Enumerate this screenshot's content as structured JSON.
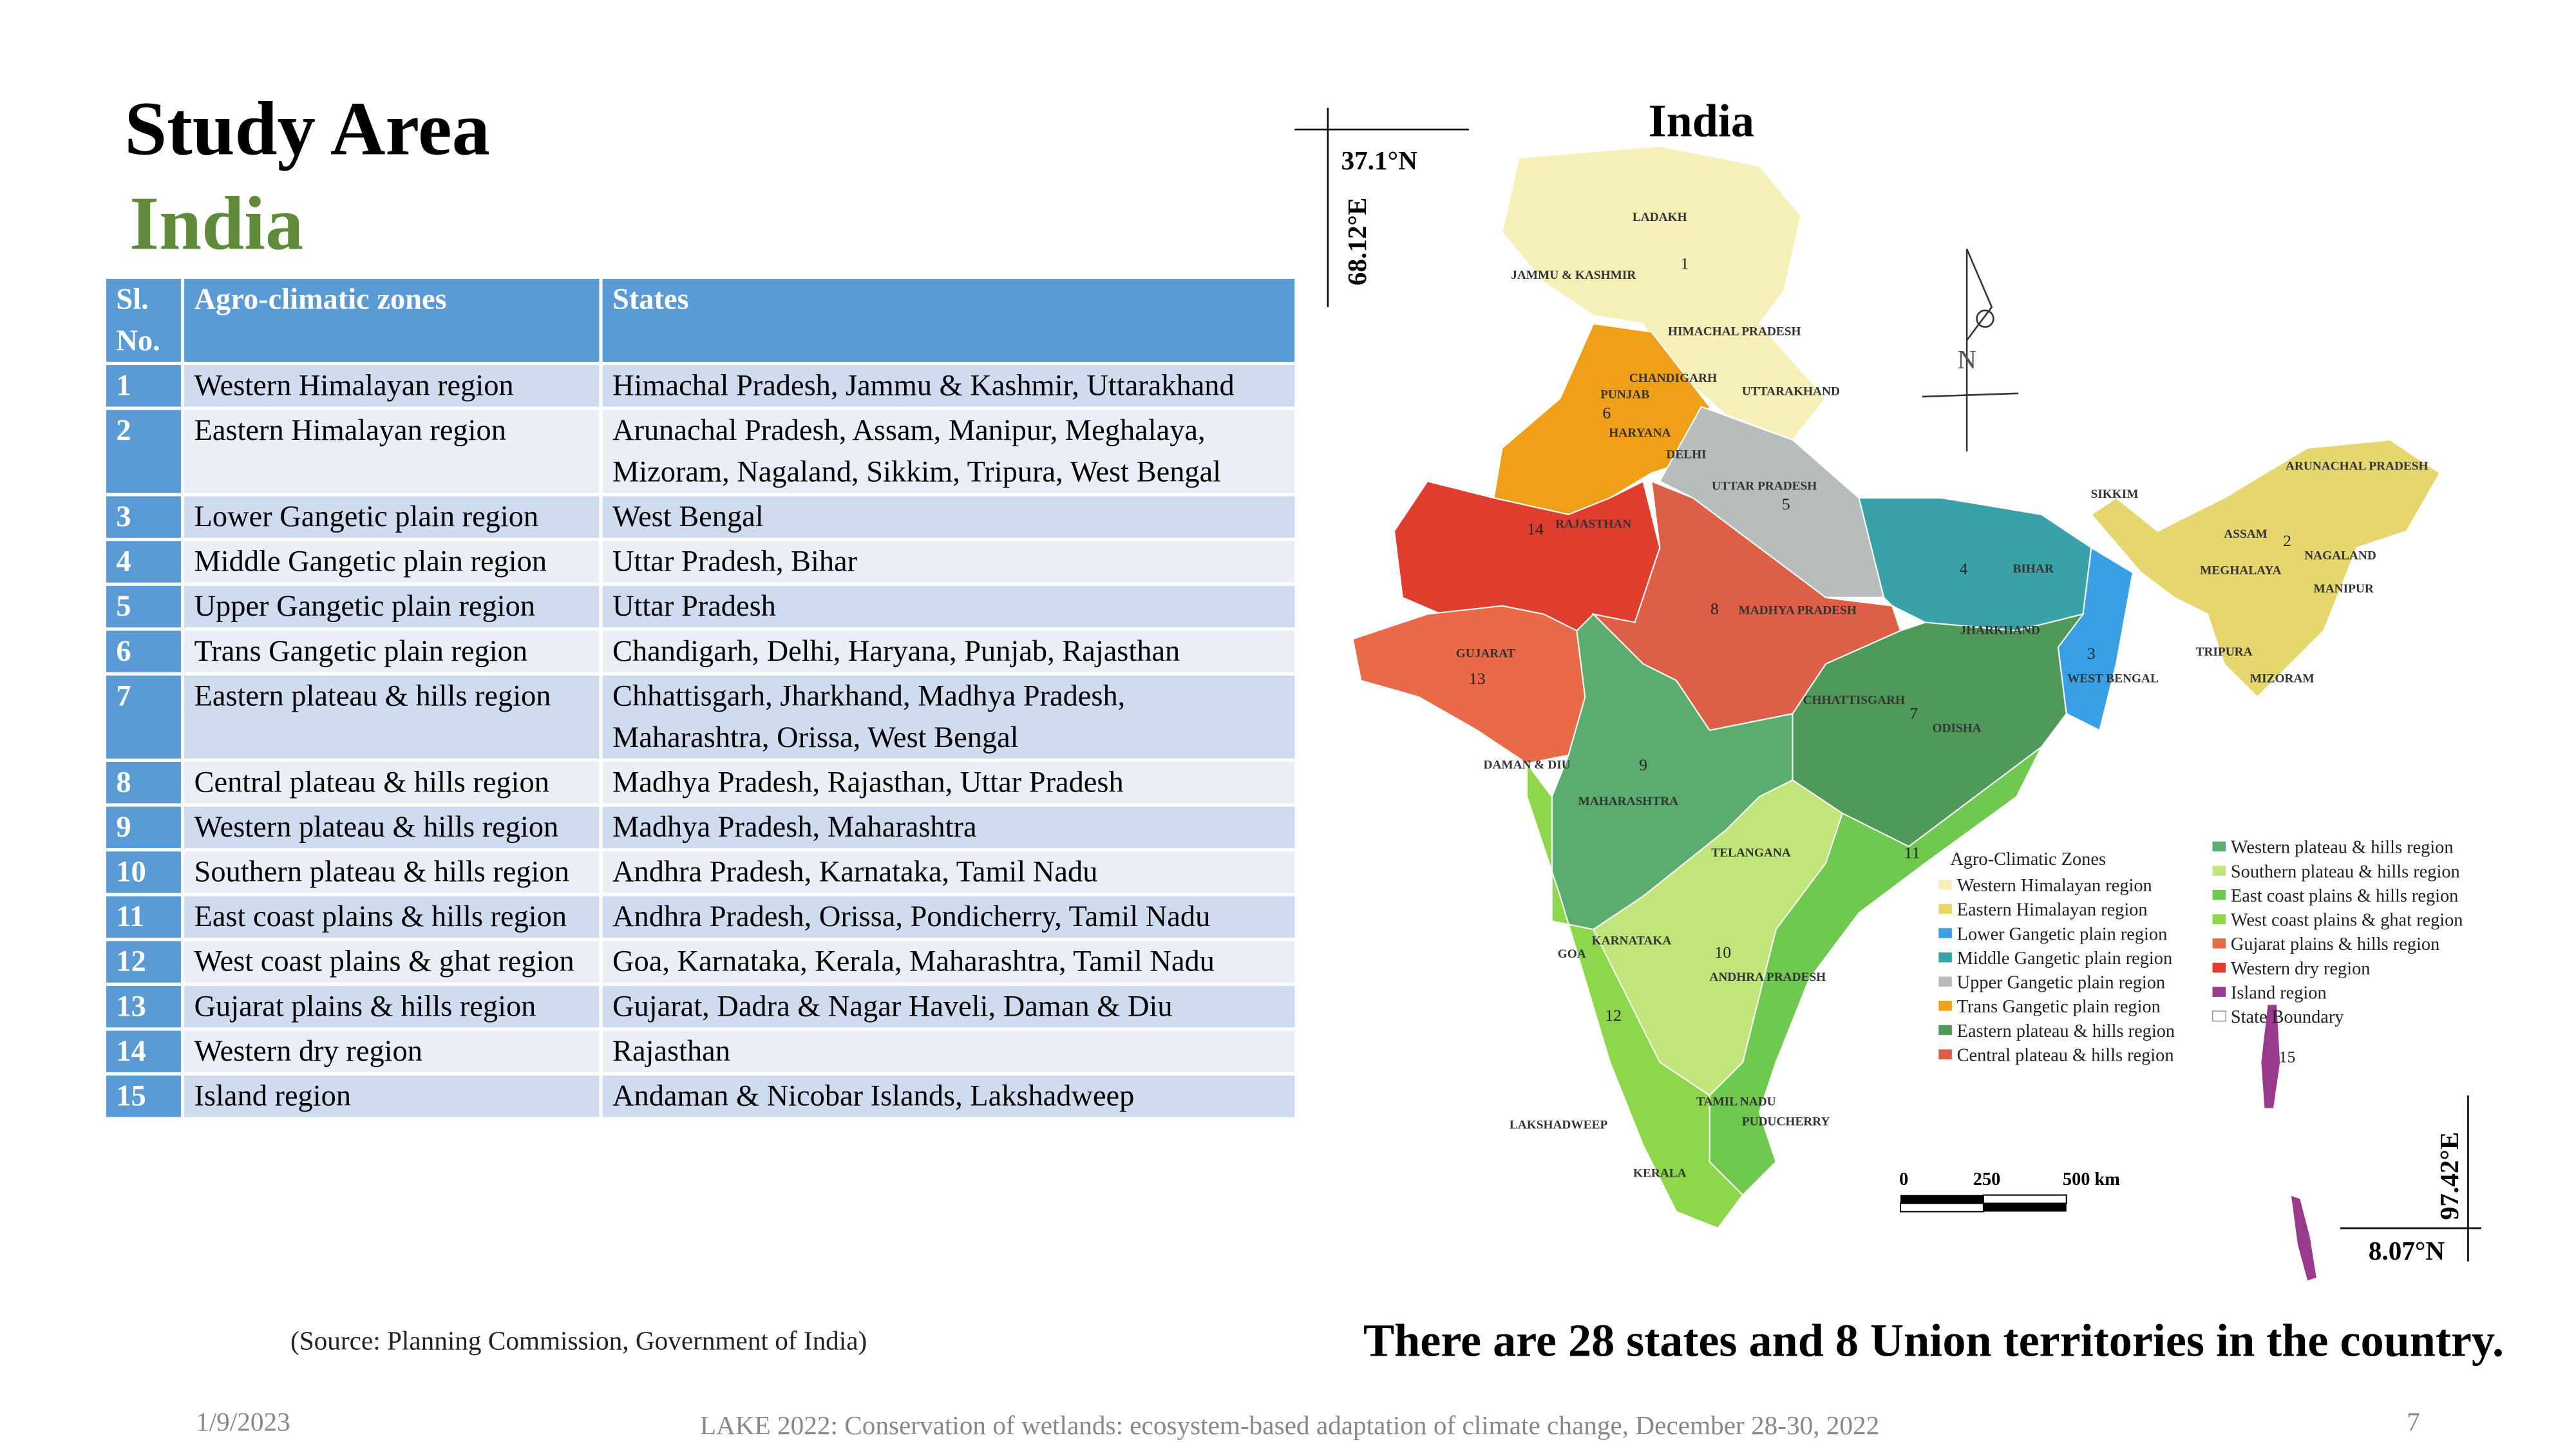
{
  "header": {
    "title": "Study Area",
    "subtitle": "India"
  },
  "table": {
    "header": [
      "Sl. No.",
      "Agro-climatic zones",
      "States"
    ],
    "rows": [
      [
        "1",
        "Western Himalayan region",
        "Himachal Pradesh, Jammu & Kashmir, Uttarakhand"
      ],
      [
        "2",
        "Eastern Himalayan region",
        "Arunachal Pradesh, Assam, Manipur, Meghalaya, Mizoram, Nagaland, Sikkim, Tripura, West Bengal"
      ],
      [
        "3",
        "Lower Gangetic plain region",
        "West Bengal"
      ],
      [
        "4",
        "Middle Gangetic plain region",
        "Uttar Pradesh, Bihar"
      ],
      [
        "5",
        "Upper Gangetic plain region",
        "Uttar Pradesh"
      ],
      [
        "6",
        "Trans Gangetic plain region",
        "Chandigarh, Delhi, Haryana, Punjab, Rajasthan"
      ],
      [
        "7",
        "Eastern plateau & hills region",
        "Chhattisgarh, Jharkhand, Madhya Pradesh, Maharashtra, Orissa, West Bengal"
      ],
      [
        "8",
        "Central plateau & hills region",
        "Madhya Pradesh, Rajasthan, Uttar Pradesh"
      ],
      [
        "9",
        "Western plateau & hills region",
        "Madhya Pradesh, Maharashtra"
      ],
      [
        "10",
        "Southern plateau & hills region",
        "Andhra Pradesh, Karnataka, Tamil Nadu"
      ],
      [
        "11",
        "East coast plains & hills region",
        "Andhra Pradesh, Orissa, Pondicherry, Tamil Nadu"
      ],
      [
        "12",
        "West coast plains & ghat region",
        "Goa, Karnataka, Kerala, Maharashtra, Tamil Nadu"
      ],
      [
        "13",
        "Gujarat plains & hills region",
        "Gujarat, Dadra & Nagar Haveli, Daman & Diu"
      ],
      [
        "14",
        "Western dry region",
        "Rajasthan"
      ],
      [
        "15",
        "Island region",
        "Andaman & Nicobar Islands, Lakshadweep"
      ]
    ]
  },
  "source": "(Source: Planning Commission, Government of India)",
  "map": {
    "title": "India",
    "coords": {
      "top_lat": "37.1°N",
      "left_lon": "68.12°E",
      "right_lon": "97.42°E",
      "bottom_lat": "8.07°N"
    },
    "north": "N",
    "state_labels": [
      "LADAKH",
      "JAMMU & KASHMIR",
      "HIMACHAL PRADESH",
      "CHANDIGARH",
      "PUNJAB",
      "HARYANA",
      "UTTARAKHAND",
      "DELHI",
      "UTTAR PRADESH",
      "RAJASTHAN",
      "SIKKIM",
      "ARUNACHAL PRADESH",
      "ASSAM",
      "NAGALAND",
      "MEGHALAYA",
      "MANIPUR",
      "BIHAR",
      "JHARKHAND",
      "MADHYA PRADESH",
      "GUJARAT",
      "WEST BENGAL",
      "TRIPURA",
      "MIZORAM",
      "CHHATTISGARH",
      "ODISHA",
      "DAMAN & DIU",
      "MAHARASHTRA",
      "TELANGANA",
      "KARNATAKA",
      "GOA",
      "ANDHRA PRADESH",
      "LAKSHADWEEP",
      "TAMIL NADU",
      "PUDUCHERRY",
      "KERALA"
    ],
    "zone_numbers": [
      "1",
      "2",
      "3",
      "4",
      "5",
      "6",
      "7",
      "8",
      "9",
      "10",
      "11",
      "12",
      "13",
      "14",
      "15"
    ],
    "legend": {
      "title": "Agro-Climatic Zones",
      "items": [
        {
          "name": "Western Himalayan region",
          "color": "#f7efb8"
        },
        {
          "name": "Eastern Himalayan region",
          "color": "#e6d66e"
        },
        {
          "name": "Lower Gangetic plain region",
          "color": "#3aa0e6"
        },
        {
          "name": "Middle Gangetic plain region",
          "color": "#39a2a8"
        },
        {
          "name": "Upper Gangetic plain region",
          "color": "#b7bdbd"
        },
        {
          "name": "Trans Gangetic plain region",
          "color": "#f0a018"
        },
        {
          "name": "Eastern plateau & hills region",
          "color": "#4f9a5a"
        },
        {
          "name": "Central plateau & hills region",
          "color": "#dd5f45"
        },
        {
          "name": "Western plateau & hills region",
          "color": "#5aad6e"
        },
        {
          "name": "Southern plateau & hills region",
          "color": "#c0e67a"
        },
        {
          "name": "East coast plains & hills region",
          "color": "#6ec94e"
        },
        {
          "name": "West coast plains & ghat region",
          "color": "#8ed64a"
        },
        {
          "name": "Gujarat plains & hills region",
          "color": "#e86a46"
        },
        {
          "name": "Western dry region",
          "color": "#df3d2e"
        },
        {
          "name": "Island region",
          "color": "#9a3a8c"
        },
        {
          "name": "State Boundary",
          "color": "#ffffff"
        }
      ]
    },
    "scale_labels": [
      "0",
      "250",
      "500 km"
    ]
  },
  "note": "There are 28 states and 8 Union territories in the country.",
  "footer": {
    "date": "1/9/2023",
    "text": "LAKE 2022: Conservation of wetlands: ecosystem-based adaptation of climate change, December 28-30, 2022",
    "page": "7"
  }
}
